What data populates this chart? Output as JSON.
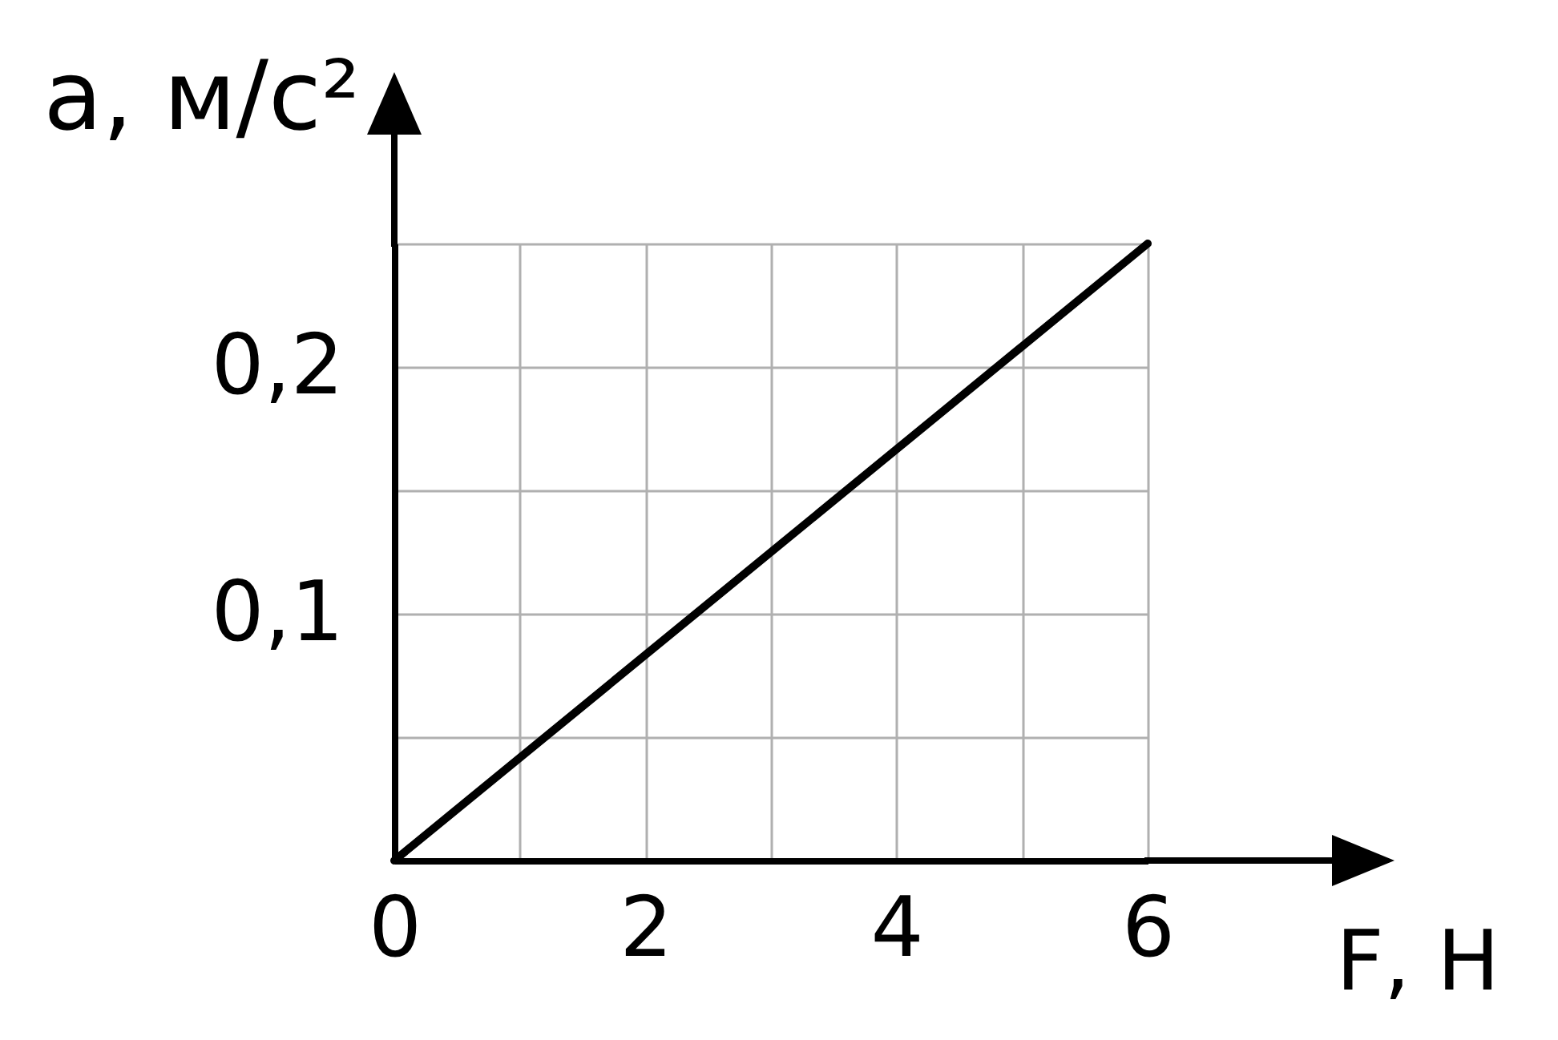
{
  "chart_data": {
    "type": "line",
    "xlabel": "F, Н",
    "ylabel": "a, м/с²",
    "x": [
      0,
      6
    ],
    "values": [
      0,
      0.25
    ],
    "color": "#000000",
    "xlim": [
      0,
      6
    ],
    "ylim": [
      0,
      0.25
    ],
    "xticks": [
      0,
      {
        "value": 1,
        "label": null
      },
      2,
      {
        "value": 3,
        "label": null
      },
      4,
      {
        "value": 5,
        "label": null
      },
      6
    ],
    "yticks": [
      {
        "value": 0,
        "label": null
      },
      {
        "value": 0.05,
        "label": null
      },
      {
        "value": 0.1,
        "label": "0,1"
      },
      {
        "value": 0.15,
        "label": null
      },
      {
        "value": 0.2,
        "label": "0,2"
      },
      {
        "value": 0.25,
        "label": null
      }
    ],
    "grid": true
  }
}
